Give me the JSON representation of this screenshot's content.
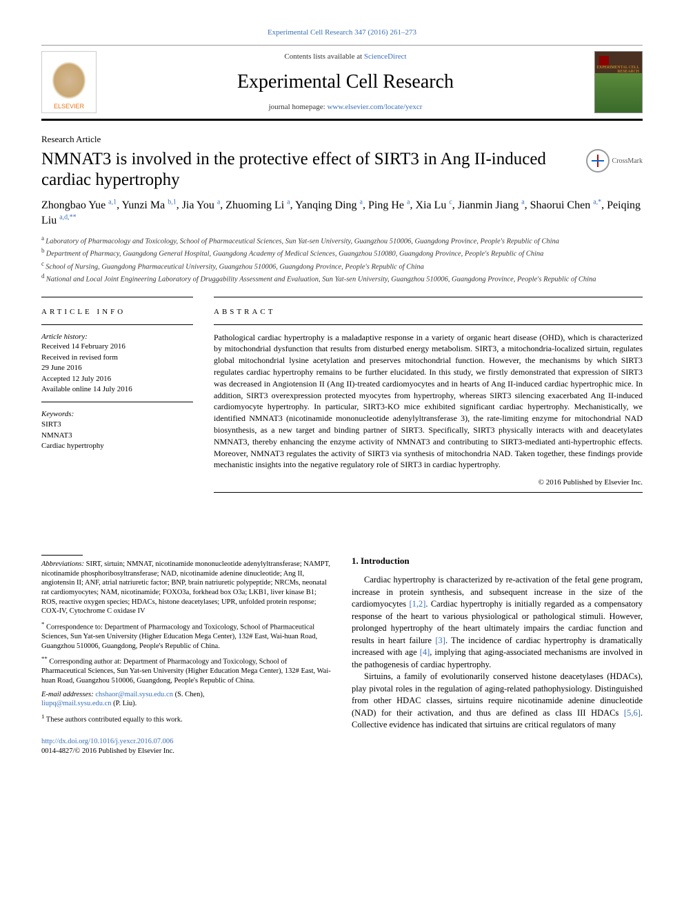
{
  "header": {
    "top_link": "Experimental Cell Research 347 (2016) 261–273",
    "contents_line_prefix": "Contents lists available at ",
    "contents_line_link": "ScienceDirect",
    "journal_title": "Experimental Cell Research",
    "homepage_prefix": "journal homepage: ",
    "homepage_link": "www.elsevier.com/locate/yexcr",
    "elsevier_label": "ELSEVIER",
    "cover_text": "EXPERIMENTAL\nCELL RESEARCH"
  },
  "article": {
    "type": "Research Article",
    "title": "NMNAT3 is involved in the protective effect of SIRT3 in Ang II-induced cardiac hypertrophy",
    "crossmark_label": "CrossMark"
  },
  "authors": [
    {
      "name": "Zhongbao Yue",
      "marks": "a,1"
    },
    {
      "name": "Yunzi Ma",
      "marks": "b,1"
    },
    {
      "name": "Jia You",
      "marks": "a"
    },
    {
      "name": "Zhuoming Li",
      "marks": "a"
    },
    {
      "name": "Yanqing Ding",
      "marks": "a"
    },
    {
      "name": "Ping He",
      "marks": "a"
    },
    {
      "name": "Xia Lu",
      "marks": "c"
    },
    {
      "name": "Jianmin Jiang",
      "marks": "a"
    },
    {
      "name": "Shaorui Chen",
      "marks": "a,*"
    },
    {
      "name": "Peiqing Liu",
      "marks": "a,d,**"
    }
  ],
  "affiliations": [
    {
      "key": "a",
      "text": "Laboratory of Pharmacology and Toxicology, School of Pharmaceutical Sciences, Sun Yat-sen University, Guangzhou 510006, Guangdong Province, People's Republic of China"
    },
    {
      "key": "b",
      "text": "Department of Pharmacy, Guangdong General Hospital, Guangdong Academy of Medical Sciences, Guangzhou 510080, Guangdong Province, People's Republic of China"
    },
    {
      "key": "c",
      "text": "School of Nursing, Guangdong Pharmaceutical University, Guangzhou 510006, Guangdong Province, People's Republic of China"
    },
    {
      "key": "d",
      "text": "National and Local Joint Engineering Laboratory of Druggability Assessment and Evaluation, Sun Yat-sen University, Guangzhou 510006, Guangdong Province, People's Republic of China"
    }
  ],
  "article_info": {
    "heading": "article info",
    "history_label": "Article history:",
    "history": [
      "Received 14 February 2016",
      "Received in revised form",
      "29 June 2016",
      "Accepted 12 July 2016",
      "Available online 14 July 2016"
    ],
    "keywords_label": "Keywords:",
    "keywords": [
      "SIRT3",
      "NMNAT3",
      "Cardiac hypertrophy"
    ]
  },
  "abstract": {
    "heading": "abstract",
    "text": "Pathological cardiac hypertrophy is a maladaptive response in a variety of organic heart disease (OHD), which is characterized by mitochondrial dysfunction that results from disturbed energy metabolism. SIRT3, a mitochondria-localized sirtuin, regulates global mitochondrial lysine acetylation and preserves mitochondrial function. However, the mechanisms by which SIRT3 regulates cardiac hypertrophy remains to be further elucidated. In this study, we firstly demonstrated that expression of SIRT3 was decreased in Angiotension II (Ang II)-treated cardiomyocytes and in hearts of Ang II-induced cardiac hypertrophic mice. In addition, SIRT3 overexpression protected myocytes from hypertrophy, whereas SIRT3 silencing exacerbated Ang II-induced cardiomyocyte hypertrophy. In particular, SIRT3-KO mice exhibited significant cardiac hypertrophy. Mechanistically, we identified NMNAT3 (nicotinamide mononucleotide adenylyltransferase 3), the rate-limiting enzyme for mitochondrial NAD biosynthesis, as a new target and binding partner of SIRT3. Specifically, SIRT3 physically interacts with and deacetylates NMNAT3, thereby enhancing the enzyme activity of NMNAT3 and contributing to SIRT3-mediated anti-hypertrophic effects. Moreover, NMNAT3 regulates the activity of SIRT3 via synthesis of mitochondria NAD. Taken together, these findings provide mechanistic insights into the negative regulatory role of SIRT3 in cardiac hypertrophy.",
    "copyright": "© 2016 Published by Elsevier Inc."
  },
  "introduction": {
    "heading": "1.  Introduction",
    "p1_a": "Cardiac hypertrophy is characterized by re-activation of the fetal gene program, increase in protein synthesis, and subsequent increase in the size of the cardiomyocytes ",
    "p1_ref1": "[1,2]",
    "p1_b": ". Cardiac hypertrophy is initially regarded as a compensatory response of the heart to various physiological or pathological stimuli. However, prolonged hypertrophy of the heart ultimately impairs the cardiac function and results in heart failure ",
    "p1_ref2": "[3]",
    "p1_c": ". The incidence of cardiac hypertrophy is dramatically increased with age ",
    "p1_ref3": "[4]",
    "p1_d": ", implying that aging-associated mechanisms are involved in the pathogenesis of cardiac hypertrophy.",
    "p2_a": "Sirtuins, a family of evolutionarily conserved histone deacetylases (HDACs), play pivotal roles in the regulation of aging-related pathophysiology. Distinguished from other HDAC classes, sirtuins require nicotinamide adenine dinucleotide (NAD) for their activation, and thus are defined as class III HDACs ",
    "p2_ref1": "[5,6]",
    "p2_b": ". Collective evidence has indicated that sirtuins are critical regulators of many"
  },
  "footnotes": {
    "abbrev_label": "Abbreviations:",
    "abbrev_text": " SIRT, sirtuin; NMNAT, nicotinamide mononucleotide adenylyltransferase; NAMPT, nicotinamide phosphoribosyltransferase; NAD, nicotinamide adenine dinucleotide; Ang II, angiotensin II; ANF, atrial natriuretic factor; BNP, brain natriuretic polypeptide; NRCMs, neonatal rat cardiomyocytes; NAM, nicotinamide; FOXO3a, forkhead box O3a; LKB1, liver kinase B1; ROS, reactive oxygen species; HDACs, histone deacetylases; UPR, unfolded protein response; COX-IV, Cytochrome C oxidase IV",
    "corr1_mark": "*",
    "corr1_text": "Correspondence to: Department of Pharmacology and Toxicology, School of Pharmaceutical Sciences, Sun Yat-sen University (Higher Education Mega Center), 132# East, Wai-huan Road, Guangzhou 510006, Guangdong, People's Republic of China.",
    "corr2_mark": "**",
    "corr2_text": "Corresponding author at: Department of Pharmacology and Toxicology, School of Pharmaceutical Sciences, Sun Yat-sen University (Higher Education Mega Center), 132# East, Wai-huan Road, Guangzhou 510006, Guangdong, People's Republic of China.",
    "email_label": "E-mail addresses:",
    "email1": "chshaor@mail.sysu.edu.cn",
    "email1_who": " (S. Chen),",
    "email2": "liupq@mail.sysu.edu.cn",
    "email2_who": " (P. Liu).",
    "equal_mark": "1",
    "equal_text": " These authors contributed equally to this work."
  },
  "doi": {
    "url": "http://dx.doi.org/10.1016/j.yexcr.2016.07.006",
    "issn_line": "0014-4827/© 2016 Published by Elsevier Inc."
  },
  "colors": {
    "link": "#3a6fb7",
    "elsevier_orange": "#e67817"
  }
}
